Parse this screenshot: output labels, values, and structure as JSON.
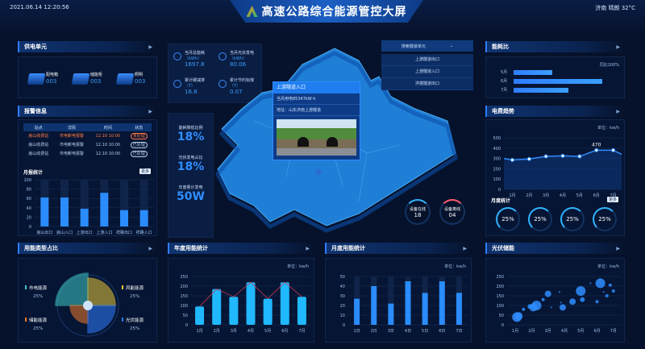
{
  "header": {
    "datetime": "2021.06.14 12:20:56",
    "title": "高速公路综合能源管控大屏",
    "weather": "济南 晴朗 32°C"
  },
  "power_unit": {
    "title": "供电单元",
    "items": [
      {
        "label": "配电箱",
        "value": "003",
        "icon": "cabinet-icon"
      },
      {
        "label": "储能柜",
        "value": "003",
        "icon": "battery-icon"
      },
      {
        "label": "照明",
        "value": "003",
        "icon": "lamp-icon"
      }
    ]
  },
  "stats": [
    {
      "label": "当月总能耗",
      "unit": "（kWh）",
      "value": "1697.8",
      "icon": "lightning-icon"
    },
    {
      "label": "当月光伏发电",
      "unit": "（kWh）",
      "value": "80.06",
      "icon": "solar-icon"
    },
    {
      "label": "累计碳减排",
      "unit": "（T）",
      "value": "16.8",
      "icon": "co2-icon"
    },
    {
      "label": "累计节约标煤",
      "unit": "（T）",
      "value": "0.07",
      "icon": "coal-icon"
    }
  ],
  "kpis": [
    {
      "label": "能耗降低比例",
      "value": "18%"
    },
    {
      "label": "光伏发电占比",
      "value": "18%"
    },
    {
      "label": "年度累计发电",
      "value": "50W"
    }
  ],
  "alarm": {
    "title": "报警信息",
    "columns": [
      "站点",
      "详情",
      "时间",
      "状态"
    ],
    "rows": [
      [
        "嵩山收费站",
        "市电断电报警",
        "12.10 10:00",
        "未处理"
      ],
      [
        "嵩山收费站",
        "市电断电报警",
        "12.10 10:00",
        "已处理"
      ],
      [
        "嵩山收费站",
        "市电断电报警",
        "12.10 10:00",
        "已处理"
      ]
    ],
    "sub_title": "月报统计",
    "more": "更多"
  },
  "alarm_chart": {
    "type": "bar",
    "categories": [
      "嵩山出口",
      "嵩山入口",
      "上游出口",
      "上游入口",
      "祥路出口",
      "祥路入口"
    ],
    "values": [
      62,
      62,
      38,
      72,
      35,
      35
    ],
    "ylim": [
      0,
      100
    ],
    "yticks": [
      0,
      20,
      40,
      60,
      80,
      100
    ]
  },
  "popup": {
    "title": "上游隧道入口",
    "usage": "当月用电85347kW·h",
    "address": "地址：山东济南上游隧道"
  },
  "dropdown": {
    "label": "搜索隧道单元",
    "options": [
      "上游隧道出口",
      "上游隧道入口",
      "洪楼隧道出口"
    ]
  },
  "devices": [
    {
      "label": "设备在线",
      "value": "18",
      "color": "#2fb3ff"
    },
    {
      "label": "设备离线",
      "value": "04",
      "color": "#ff5a6e"
    }
  ],
  "ratio": {
    "title": "能耗比",
    "note": "同比100%",
    "rows": [
      {
        "label": "5月",
        "percent": 40
      },
      {
        "label": "6月",
        "percent": 92
      },
      {
        "label": "7月",
        "percent": 57
      }
    ]
  },
  "trend": {
    "title": "电费趋势",
    "unit": "单位：kw/h",
    "sub_title": "月度统计",
    "more": "更多",
    "gauges": [
      "25%",
      "25%",
      "25%",
      "25%"
    ]
  },
  "trend_chart": {
    "type": "line",
    "categories": [
      "1月",
      "2月",
      "3月",
      "4月",
      "5月",
      "6月",
      "7月"
    ],
    "values": [
      285,
      295,
      320,
      325,
      320,
      380,
      380
    ],
    "annotation": "470",
    "ylim": [
      0,
      500
    ],
    "yticks": [
      0,
      100,
      200,
      300,
      400,
      500
    ]
  },
  "energy_type": {
    "title": "用能类型占比",
    "items": [
      {
        "label": "市电能源",
        "value": "25%",
        "color": "#3fc7c7"
      },
      {
        "label": "风能能源",
        "value": "25%",
        "color": "#e8c83a"
      },
      {
        "label": "储能能源",
        "value": "25%",
        "color": "#f07a2a"
      },
      {
        "label": "光伏能源",
        "value": "25%",
        "color": "#2f7dff"
      }
    ]
  },
  "yearly": {
    "title": "年度用能统计",
    "unit": "单位：kw/h"
  },
  "yearly_chart": {
    "type": "bar",
    "categories": [
      "1月",
      "2月",
      "3月",
      "4月",
      "5月",
      "6月",
      "7月"
    ],
    "values": [
      95,
      185,
      145,
      220,
      135,
      220,
      145
    ],
    "ylim": [
      0,
      250
    ],
    "yticks": [
      0,
      50,
      100,
      150,
      200,
      250
    ]
  },
  "monthly": {
    "title": "月度用能统计",
    "unit": "单位：kw/h"
  },
  "monthly_chart": {
    "type": "bar",
    "categories": [
      "1日",
      "2日",
      "3日",
      "4日",
      "5日",
      "6日",
      "7日"
    ],
    "values": [
      27,
      40,
      22,
      45,
      33,
      45,
      33
    ],
    "ylim": [
      0,
      50
    ],
    "yticks": [
      0,
      10,
      20,
      30,
      40,
      50
    ]
  },
  "pv": {
    "title": "光伏储能",
    "unit": "单位：kw/h"
  },
  "pv_chart": {
    "type": "scatter",
    "categories": [
      "1月",
      "2月",
      "3月",
      "4月",
      "5月",
      "6月",
      "7月"
    ],
    "ylim": [
      0,
      250
    ],
    "yticks": [
      0,
      50,
      100,
      150,
      200,
      250
    ],
    "points": [
      [
        1.1,
        40,
        6
      ],
      [
        1.2,
        45,
        5
      ],
      [
        1.5,
        80,
        2
      ],
      [
        1.9,
        95,
        3
      ],
      [
        2.1,
        90,
        5
      ],
      [
        2.3,
        100,
        6
      ],
      [
        2.7,
        130,
        2
      ],
      [
        3,
        160,
        4
      ],
      [
        3.2,
        90,
        1
      ],
      [
        3.7,
        170,
        1
      ],
      [
        3.8,
        115,
        1
      ],
      [
        3.9,
        90,
        4
      ],
      [
        4.5,
        120,
        4
      ],
      [
        5,
        175,
        6
      ],
      [
        5.1,
        130,
        3
      ],
      [
        5.6,
        215,
        1
      ],
      [
        6,
        120,
        2
      ],
      [
        6.2,
        215,
        6
      ],
      [
        6.4,
        170,
        1
      ],
      [
        6.6,
        150,
        2
      ],
      [
        6.8,
        205,
        2
      ],
      [
        7,
        175,
        2
      ]
    ]
  }
}
